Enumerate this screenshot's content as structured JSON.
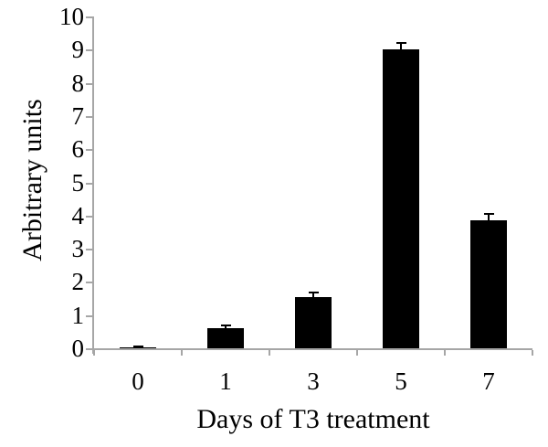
{
  "chart_data": {
    "type": "bar",
    "title": "",
    "xlabel": "Days of T3 treatment",
    "ylabel": "Arbitrary units",
    "categories": [
      "0",
      "1",
      "3",
      "5",
      "7"
    ],
    "values": [
      0.02,
      0.6,
      1.55,
      9.0,
      3.85
    ],
    "error_bars_upper": [
      0.02,
      0.1,
      0.13,
      0.2,
      0.2
    ],
    "ylim": [
      0,
      10
    ],
    "ytick_step": 1,
    "ytick_labels": [
      "0",
      "1",
      "2",
      "3",
      "4",
      "5",
      "6",
      "7",
      "8",
      "9",
      "10"
    ],
    "grid": false,
    "legend_position": "none",
    "bar_color": "#000000",
    "error_bar_color": "#000000",
    "axis_color": "#a6a6a6",
    "text_color": "#000000"
  }
}
